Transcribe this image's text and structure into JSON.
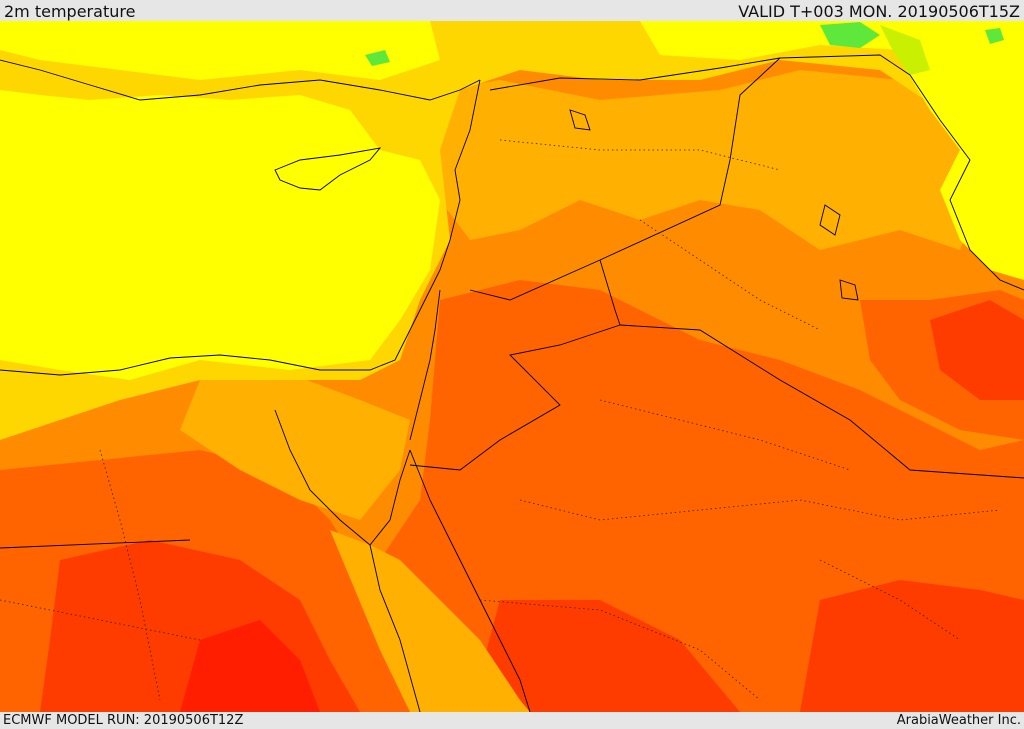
{
  "header": {
    "title": "2m temperature",
    "valid": "VALID T+003 MON. 20190506T15Z"
  },
  "footer": {
    "model_run": "ECMWF MODEL RUN: 20190506T12Z",
    "credit": "ArabiaWeather Inc."
  },
  "palette": {
    "green": "#5ee83c",
    "yellow_green": "#c8f000",
    "yellow": "#ffff00",
    "gold": "#ffd700",
    "amber": "#ffb000",
    "orange": "#ff8c00",
    "dark_orange": "#ff6400",
    "red_orange": "#ff3c00",
    "red": "#ff1e00",
    "border_line": "#000000"
  }
}
